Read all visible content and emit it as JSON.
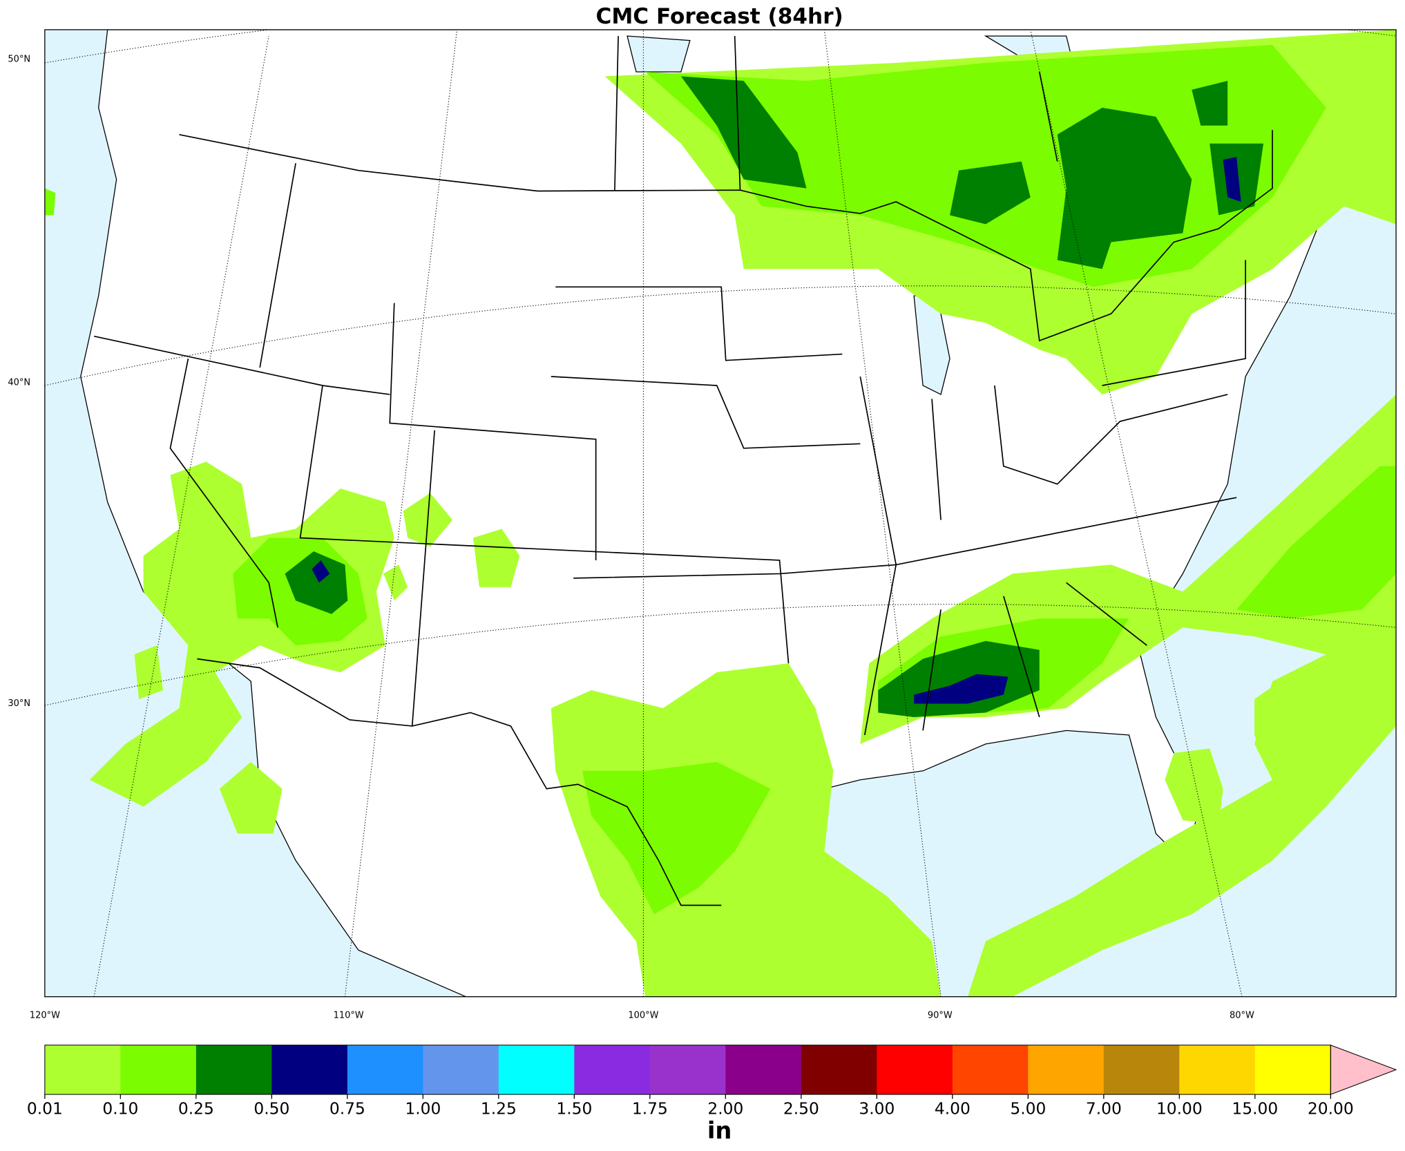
{
  "title": "CMC Forecast (84hr)",
  "lat_labels": [
    "50°N",
    "40°N",
    "30°N"
  ],
  "lon_labels": [
    "120°W",
    "110°W",
    "100°W",
    "90°W",
    "80°W"
  ],
  "colorbar": {
    "unit": "in",
    "ticks": [
      {
        "value": 0.01,
        "label": "0.01"
      },
      {
        "value": 0.1,
        "label": "0.10"
      },
      {
        "value": 0.25,
        "label": "0.25"
      },
      {
        "value": 0.5,
        "label": "0.50"
      },
      {
        "value": 0.75,
        "label": "0.75"
      },
      {
        "value": 1,
        "label": "1.00"
      },
      {
        "value": 1.25,
        "label": "1.25"
      },
      {
        "value": 1.5,
        "label": "1.50"
      },
      {
        "value": 1.75,
        "label": "1.75"
      },
      {
        "value": 2,
        "label": "2.00"
      },
      {
        "value": 2.5,
        "label": "2.50"
      },
      {
        "value": 3,
        "label": "3.00"
      },
      {
        "value": 4,
        "label": "4.00"
      },
      {
        "value": 5,
        "label": "5.00"
      },
      {
        "value": 7,
        "label": "7.00"
      },
      {
        "value": 10,
        "label": "10.00"
      },
      {
        "value": 15,
        "label": "15.00"
      },
      {
        "value": 20,
        "label": "20.00"
      }
    ],
    "colors": [
      "#adff2f",
      "#7cfc00",
      "#008000",
      "#000080",
      "#1e90ff",
      "#6495ed",
      "#00ffff",
      "#8a2be2",
      "#9932cc",
      "#8b008b",
      "#800000",
      "#ff0000",
      "#ff4500",
      "#ffa500",
      "#b8860b",
      "#ffd700",
      "#ffff00"
    ],
    "extend_color": "#ffc0cb"
  }
}
